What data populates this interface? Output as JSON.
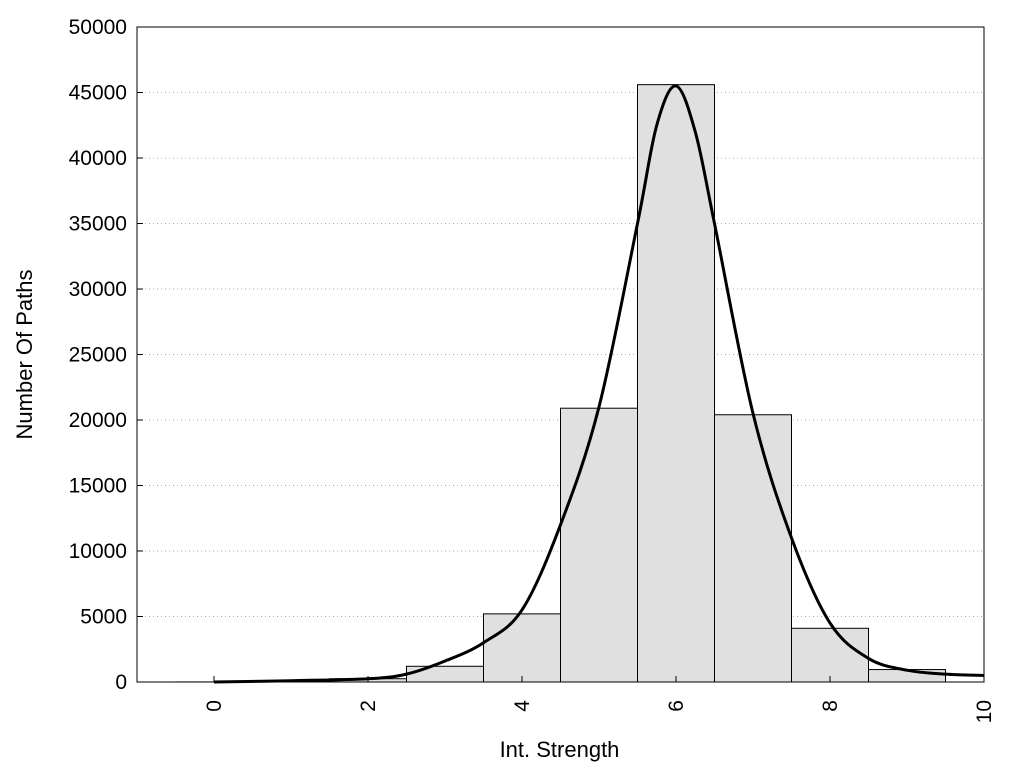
{
  "chart_data": {
    "type": "bar",
    "title": "",
    "xlabel": "Int. Strength",
    "ylabel": "Number Of Paths",
    "xlim": [
      -1,
      10
    ],
    "ylim": [
      0,
      50000
    ],
    "x_ticks": [
      0,
      2,
      4,
      6,
      8,
      10
    ],
    "y_ticks": [
      0,
      5000,
      10000,
      15000,
      20000,
      25000,
      30000,
      35000,
      40000,
      45000,
      50000
    ],
    "grid": "horizontal dotted",
    "legend": "none",
    "bar_color": "#e0e0e0",
    "bar_edge_color": "#000000",
    "curve_color": "#000000",
    "bars": [
      {
        "x": 0,
        "value": 5
      },
      {
        "x": 1,
        "value": 20
      },
      {
        "x": 2,
        "value": 250
      },
      {
        "x": 3,
        "value": 1200
      },
      {
        "x": 4,
        "value": 5200
      },
      {
        "x": 5,
        "value": 20900
      },
      {
        "x": 6,
        "value": 45600
      },
      {
        "x": 7,
        "value": 20400
      },
      {
        "x": 8,
        "value": 4100
      },
      {
        "x": 9,
        "value": 950
      }
    ],
    "curve": {
      "x": [
        0,
        1,
        2,
        2.5,
        3,
        3.5,
        4,
        4.5,
        5,
        5.5,
        5.75,
        6,
        6.25,
        6.5,
        7,
        7.5,
        8,
        8.5,
        9,
        9.5,
        10
      ],
      "y": [
        0,
        100,
        250,
        600,
        1600,
        3000,
        5500,
        12000,
        21000,
        35000,
        42500,
        45500,
        42000,
        35000,
        20500,
        11000,
        4500,
        1800,
        900,
        600,
        500
      ]
    }
  }
}
